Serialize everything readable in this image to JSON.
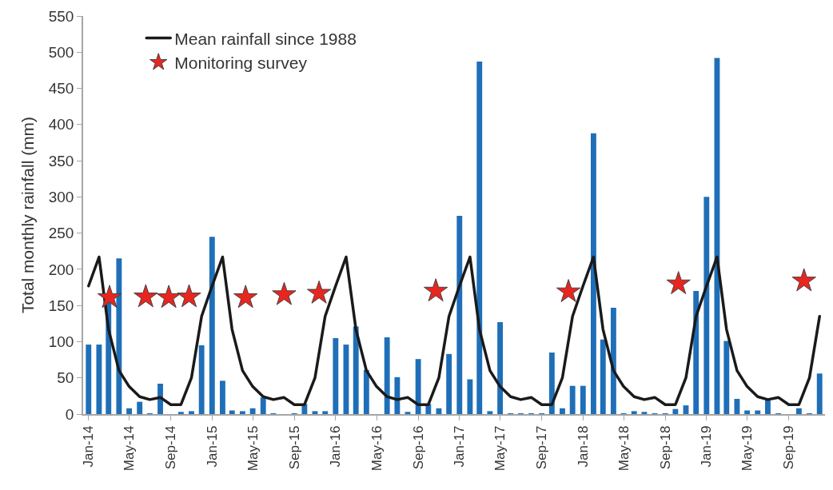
{
  "chart_data": {
    "type": "bar",
    "ylabel": "Total monthly rainfall (mm)",
    "x": [
      "2014-01",
      "2014-02",
      "2014-03",
      "2014-04",
      "2014-05",
      "2014-06",
      "2014-07",
      "2014-08",
      "2014-09",
      "2014-10",
      "2014-11",
      "2014-12",
      "2015-01",
      "2015-02",
      "2015-03",
      "2015-04",
      "2015-05",
      "2015-06",
      "2015-07",
      "2015-08",
      "2015-09",
      "2015-10",
      "2015-11",
      "2015-12",
      "2016-01",
      "2016-02",
      "2016-03",
      "2016-04",
      "2016-05",
      "2016-06",
      "2016-07",
      "2016-08",
      "2016-09",
      "2016-10",
      "2016-11",
      "2016-12",
      "2017-01",
      "2017-02",
      "2017-03",
      "2017-04",
      "2017-05",
      "2017-06",
      "2017-07",
      "2017-08",
      "2017-09",
      "2017-10",
      "2017-11",
      "2017-12",
      "2018-01",
      "2018-02",
      "2018-03",
      "2018-04",
      "2018-05",
      "2018-06",
      "2018-07",
      "2018-08",
      "2018-09",
      "2018-10",
      "2018-11",
      "2018-12",
      "2019-01",
      "2019-02",
      "2019-03",
      "2019-04",
      "2019-05",
      "2019-06",
      "2019-07",
      "2019-08",
      "2019-09",
      "2019-10",
      "2019-11",
      "2019-12"
    ],
    "series": [
      {
        "color": "#1f6fb8",
        "values": [
          96,
          96,
          155,
          215,
          8,
          17,
          1,
          42,
          0,
          3,
          4,
          95,
          245,
          46,
          5,
          4,
          8,
          23,
          1,
          0,
          1,
          14,
          4,
          4,
          105,
          96,
          121,
          61,
          0,
          106,
          51,
          3,
          76,
          14,
          8,
          83,
          274,
          48,
          487,
          4,
          127,
          1,
          1,
          1,
          1,
          85,
          8,
          39,
          39,
          388,
          103,
          147,
          1,
          4,
          3,
          1,
          1,
          7,
          12,
          170,
          300,
          492,
          101,
          21,
          5,
          5,
          22,
          1,
          0,
          8,
          1,
          56
        ]
      },
      {
        "type": "line",
        "name": "Mean rainfall since 1988",
        "color": "#1a1a1a",
        "line_style": "solid",
        "values": [
          177,
          217,
          117,
          60,
          38,
          24,
          20,
          23,
          13,
          13,
          50,
          135,
          177,
          217,
          117,
          60,
          38,
          24,
          20,
          23,
          13,
          13,
          50,
          135,
          177,
          217,
          117,
          60,
          38,
          24,
          20,
          23,
          13,
          13,
          50,
          135,
          177,
          217,
          117,
          60,
          38,
          24,
          20,
          23,
          13,
          13,
          50,
          135,
          177,
          217,
          117,
          60,
          38,
          24,
          20,
          23,
          13,
          13,
          50,
          135,
          177,
          217,
          117,
          60,
          38,
          24,
          20,
          23,
          13,
          13,
          50,
          135
        ]
      },
      {
        "type": "scatter",
        "name": "Monitoring survey",
        "color": "#e8251f",
        "marker": "star",
        "x": [
          "2014-03-04",
          "2014-06-19",
          "2014-08-26",
          "2014-10-25",
          "2015-04-10",
          "2015-08-02",
          "2015-11-13",
          "2016-10-23",
          "2017-11-19",
          "2018-10-10",
          "2019-10-16"
        ],
        "values": [
          161,
          162,
          161,
          162,
          161,
          165,
          167,
          170,
          169,
          180,
          184
        ]
      }
    ],
    "xlim": [
      "2013-12-16",
      "2019-12-17"
    ],
    "xticks": [
      {
        "value": "2014-01",
        "label": "Jan-14"
      },
      {
        "value": "2014-05",
        "label": "May-14"
      },
      {
        "value": "2014-09",
        "label": "Sep-14"
      },
      {
        "value": "2015-01",
        "label": "Jan-15"
      },
      {
        "value": "2015-05",
        "label": "May-15"
      },
      {
        "value": "2015-09",
        "label": "Sep-15"
      },
      {
        "value": "2016-01",
        "label": "Jan-16"
      },
      {
        "value": "2016-05",
        "label": "May-16"
      },
      {
        "value": "2016-09",
        "label": "Sep-16"
      },
      {
        "value": "2017-01",
        "label": "Jan-17"
      },
      {
        "value": "2017-05",
        "label": "May-17"
      },
      {
        "value": "2017-09",
        "label": "Sep-17"
      },
      {
        "value": "2018-01",
        "label": "Jan-18"
      },
      {
        "value": "2018-05",
        "label": "May-18"
      },
      {
        "value": "2018-09",
        "label": "Sep-18"
      },
      {
        "value": "2019-01",
        "label": "Jan-19"
      },
      {
        "value": "2019-05",
        "label": "May-19"
      },
      {
        "value": "2019-09",
        "label": "Sep-19"
      }
    ],
    "ylim": [
      0,
      550
    ],
    "yticks": [
      0,
      50,
      100,
      150,
      200,
      250,
      300,
      350,
      400,
      450,
      500,
      550
    ],
    "grid": false,
    "legend": "top left"
  }
}
